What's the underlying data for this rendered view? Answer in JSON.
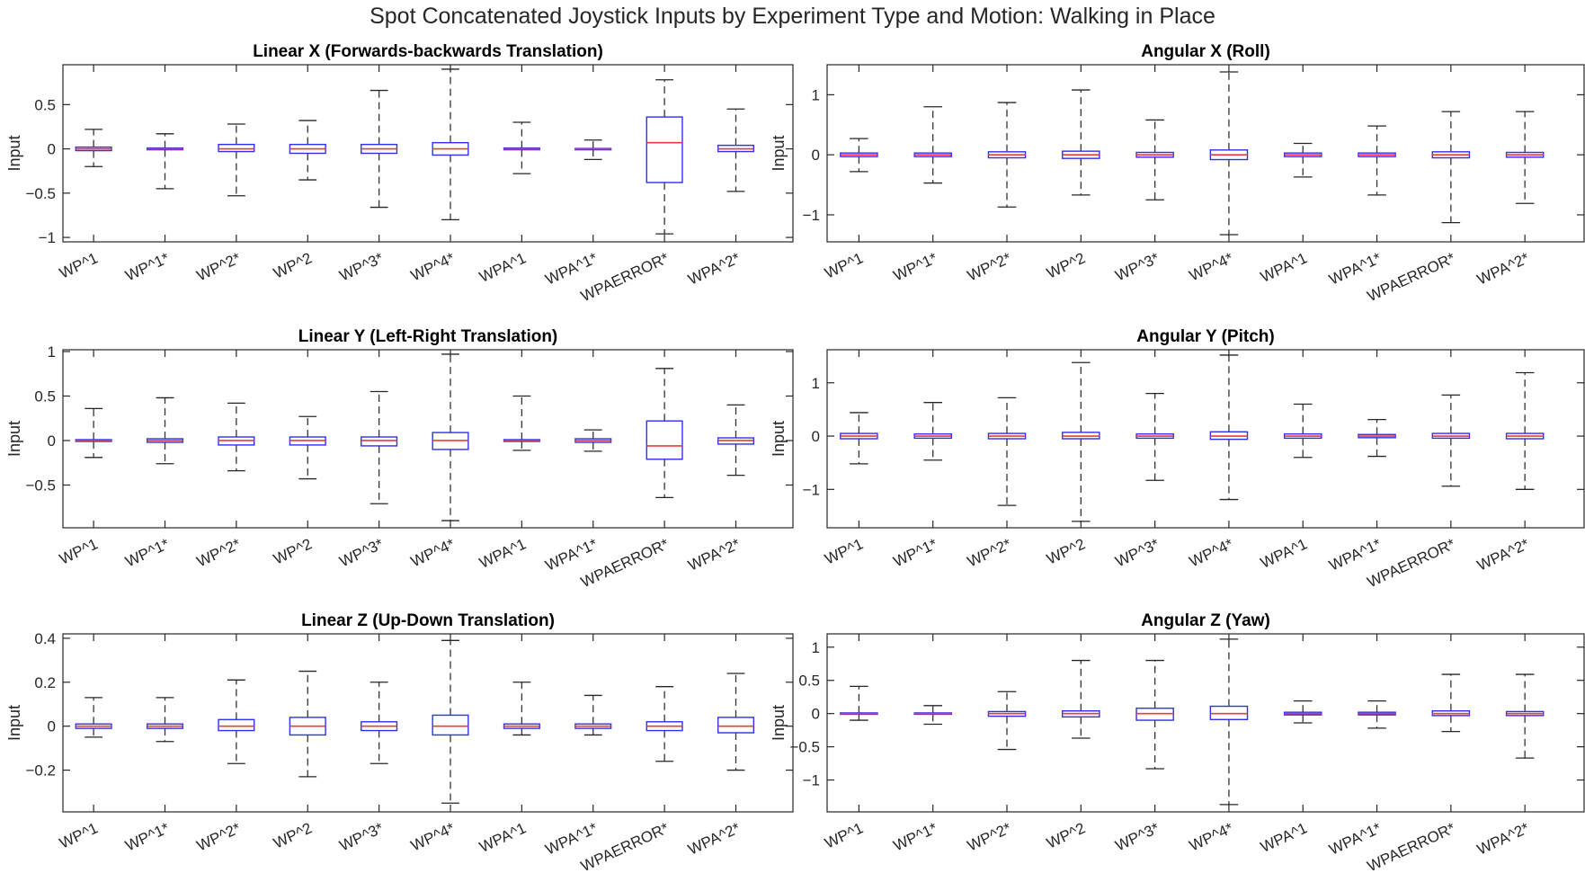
{
  "title": "Spot Concatenated Joystick Inputs by Experiment Type and Motion: Walking in Place",
  "colors": {
    "box": "#2f2ff0",
    "median": "#e83c3c",
    "whisker": "#333333",
    "axis": "#262626"
  },
  "chart_data": [
    {
      "type": "box",
      "title": "Linear X (Forwards-backwards Translation)",
      "ylabel": "Input",
      "ylim": [
        -1.05,
        0.95
      ],
      "yticks": [
        -1,
        -0.5,
        0,
        0.5
      ],
      "categories": [
        "WP^1",
        "WP^1*",
        "WP^2*",
        "WP^2",
        "WP^3*",
        "WP^4*",
        "WPA^1",
        "WPA^1*",
        "WPAERROR*",
        "WPA^2*"
      ],
      "boxes": [
        {
          "min": -0.2,
          "q1": -0.02,
          "median": 0.0,
          "q3": 0.02,
          "max": 0.22
        },
        {
          "min": -0.45,
          "q1": -0.01,
          "median": 0.0,
          "q3": 0.01,
          "max": 0.17
        },
        {
          "min": -0.53,
          "q1": -0.03,
          "median": 0.0,
          "q3": 0.05,
          "max": 0.28
        },
        {
          "min": -0.35,
          "q1": -0.05,
          "median": 0.0,
          "q3": 0.05,
          "max": 0.32
        },
        {
          "min": -0.66,
          "q1": -0.05,
          "median": 0.0,
          "q3": 0.05,
          "max": 0.66
        },
        {
          "min": -0.8,
          "q1": -0.07,
          "median": 0.0,
          "q3": 0.07,
          "max": 0.9
        },
        {
          "min": -0.28,
          "q1": -0.01,
          "median": 0.0,
          "q3": 0.01,
          "max": 0.3
        },
        {
          "min": -0.12,
          "q1": -0.005,
          "median": 0.0,
          "q3": 0.005,
          "max": 0.1
        },
        {
          "min": -0.96,
          "q1": -0.38,
          "median": 0.07,
          "q3": 0.36,
          "max": 0.78
        },
        {
          "min": -0.48,
          "q1": -0.03,
          "median": 0.0,
          "q3": 0.04,
          "max": 0.45
        }
      ]
    },
    {
      "type": "box",
      "title": "Angular X (Roll)",
      "ylabel": "Input",
      "ylim": [
        -1.45,
        1.5
      ],
      "yticks": [
        -1,
        0,
        1
      ],
      "categories": [
        "WP^1",
        "WP^1*",
        "WP^2*",
        "WP^2",
        "WP^3*",
        "WP^4*",
        "WPA^1",
        "WPA^1*",
        "WPAERROR*",
        "WPA^2*"
      ],
      "boxes": [
        {
          "min": -0.28,
          "q1": -0.03,
          "median": 0.0,
          "q3": 0.03,
          "max": 0.27
        },
        {
          "min": -0.47,
          "q1": -0.03,
          "median": 0.0,
          "q3": 0.03,
          "max": 0.8
        },
        {
          "min": -0.87,
          "q1": -0.05,
          "median": 0.0,
          "q3": 0.05,
          "max": 0.87
        },
        {
          "min": -0.67,
          "q1": -0.06,
          "median": 0.0,
          "q3": 0.06,
          "max": 1.08
        },
        {
          "min": -0.75,
          "q1": -0.04,
          "median": 0.0,
          "q3": 0.04,
          "max": 0.58
        },
        {
          "min": -1.33,
          "q1": -0.08,
          "median": 0.0,
          "q3": 0.08,
          "max": 1.38
        },
        {
          "min": -0.37,
          "q1": -0.03,
          "median": 0.0,
          "q3": 0.03,
          "max": 0.19
        },
        {
          "min": -0.67,
          "q1": -0.03,
          "median": 0.0,
          "q3": 0.03,
          "max": 0.48
        },
        {
          "min": -1.13,
          "q1": -0.05,
          "median": 0.0,
          "q3": 0.05,
          "max": 0.72
        },
        {
          "min": -0.81,
          "q1": -0.04,
          "median": 0.0,
          "q3": 0.04,
          "max": 0.72
        }
      ]
    },
    {
      "type": "box",
      "title": "Linear Y (Left-Right Translation)",
      "ylabel": "Input",
      "ylim": [
        -0.98,
        1.02
      ],
      "yticks": [
        -0.5,
        0,
        0.5,
        1
      ],
      "categories": [
        "WP^1",
        "WP^1*",
        "WP^2*",
        "WP^2",
        "WP^3*",
        "WP^4*",
        "WPA^1",
        "WPA^1*",
        "WPAERROR*",
        "WPA^2*"
      ],
      "boxes": [
        {
          "min": -0.19,
          "q1": -0.01,
          "median": 0.0,
          "q3": 0.01,
          "max": 0.36
        },
        {
          "min": -0.26,
          "q1": -0.02,
          "median": 0.0,
          "q3": 0.02,
          "max": 0.48
        },
        {
          "min": -0.34,
          "q1": -0.05,
          "median": 0.0,
          "q3": 0.04,
          "max": 0.42
        },
        {
          "min": -0.43,
          "q1": -0.05,
          "median": 0.0,
          "q3": 0.04,
          "max": 0.27
        },
        {
          "min": -0.71,
          "q1": -0.06,
          "median": 0.0,
          "q3": 0.04,
          "max": 0.55
        },
        {
          "min": -0.9,
          "q1": -0.1,
          "median": 0.0,
          "q3": 0.09,
          "max": 0.97
        },
        {
          "min": -0.11,
          "q1": -0.01,
          "median": 0.0,
          "q3": 0.01,
          "max": 0.5
        },
        {
          "min": -0.12,
          "q1": -0.02,
          "median": 0.0,
          "q3": 0.02,
          "max": 0.12
        },
        {
          "min": -0.64,
          "q1": -0.21,
          "median": -0.06,
          "q3": 0.22,
          "max": 0.81
        },
        {
          "min": -0.39,
          "q1": -0.04,
          "median": 0.0,
          "q3": 0.03,
          "max": 0.4
        }
      ]
    },
    {
      "type": "box",
      "title": "Angular Y (Pitch)",
      "ylabel": "Input",
      "ylim": [
        -1.72,
        1.62
      ],
      "yticks": [
        -1,
        0,
        1
      ],
      "categories": [
        "WP^1",
        "WP^1*",
        "WP^2*",
        "WP^2",
        "WP^3*",
        "WP^4*",
        "WPA^1",
        "WPA^1*",
        "WPAERROR*",
        "WPA^2*"
      ],
      "boxes": [
        {
          "min": -0.52,
          "q1": -0.05,
          "median": 0.0,
          "q3": 0.05,
          "max": 0.44
        },
        {
          "min": -0.45,
          "q1": -0.04,
          "median": 0.0,
          "q3": 0.04,
          "max": 0.63
        },
        {
          "min": -1.3,
          "q1": -0.05,
          "median": 0.0,
          "q3": 0.05,
          "max": 0.72
        },
        {
          "min": -1.6,
          "q1": -0.05,
          "median": 0.0,
          "q3": 0.07,
          "max": 1.38
        },
        {
          "min": -0.83,
          "q1": -0.04,
          "median": 0.0,
          "q3": 0.04,
          "max": 0.8
        },
        {
          "min": -1.19,
          "q1": -0.06,
          "median": 0.0,
          "q3": 0.08,
          "max": 1.52
        },
        {
          "min": -0.4,
          "q1": -0.04,
          "median": 0.0,
          "q3": 0.04,
          "max": 0.6
        },
        {
          "min": -0.38,
          "q1": -0.03,
          "median": 0.0,
          "q3": 0.03,
          "max": 0.31
        },
        {
          "min": -0.94,
          "q1": -0.04,
          "median": 0.0,
          "q3": 0.05,
          "max": 0.77
        },
        {
          "min": -1.0,
          "q1": -0.05,
          "median": 0.0,
          "q3": 0.05,
          "max": 1.19
        }
      ]
    },
    {
      "type": "box",
      "title": "Linear Z (Up-Down Translation)",
      "ylabel": "Input",
      "ylim": [
        -0.39,
        0.42
      ],
      "yticks": [
        -0.2,
        0,
        0.2,
        0.4
      ],
      "categories": [
        "WP^1",
        "WP^1*",
        "WP^2*",
        "WP^2",
        "WP^3*",
        "WP^4*",
        "WPA^1",
        "WPA^1*",
        "WPAERROR*",
        "WPA^2*"
      ],
      "boxes": [
        {
          "min": -0.05,
          "q1": -0.01,
          "median": 0.0,
          "q3": 0.01,
          "max": 0.13
        },
        {
          "min": -0.07,
          "q1": -0.01,
          "median": 0.0,
          "q3": 0.01,
          "max": 0.13
        },
        {
          "min": -0.17,
          "q1": -0.02,
          "median": 0.0,
          "q3": 0.03,
          "max": 0.21
        },
        {
          "min": -0.23,
          "q1": -0.04,
          "median": 0.0,
          "q3": 0.04,
          "max": 0.25
        },
        {
          "min": -0.17,
          "q1": -0.02,
          "median": 0.0,
          "q3": 0.02,
          "max": 0.2
        },
        {
          "min": -0.35,
          "q1": -0.04,
          "median": 0.0,
          "q3": 0.05,
          "max": 0.39
        },
        {
          "min": -0.04,
          "q1": -0.01,
          "median": 0.0,
          "q3": 0.01,
          "max": 0.2
        },
        {
          "min": -0.04,
          "q1": -0.01,
          "median": 0.0,
          "q3": 0.01,
          "max": 0.14
        },
        {
          "min": -0.16,
          "q1": -0.02,
          "median": 0.0,
          "q3": 0.02,
          "max": 0.18
        },
        {
          "min": -0.2,
          "q1": -0.03,
          "median": 0.0,
          "q3": 0.04,
          "max": 0.24
        }
      ]
    },
    {
      "type": "box",
      "title": "Angular Z (Yaw)",
      "ylabel": "Input",
      "ylim": [
        -1.48,
        1.2
      ],
      "yticks": [
        -1,
        -0.5,
        0,
        0.5,
        1
      ],
      "categories": [
        "WP^1",
        "WP^1*",
        "WP^2*",
        "WP^2",
        "WP^3*",
        "WP^4*",
        "WPA^1",
        "WPA^1*",
        "WPAERROR*",
        "WPA^2*"
      ],
      "boxes": [
        {
          "min": -0.1,
          "q1": -0.01,
          "median": 0.0,
          "q3": 0.01,
          "max": 0.41
        },
        {
          "min": -0.16,
          "q1": -0.01,
          "median": 0.0,
          "q3": 0.01,
          "max": 0.12
        },
        {
          "min": -0.54,
          "q1": -0.04,
          "median": 0.0,
          "q3": 0.03,
          "max": 0.33
        },
        {
          "min": -0.37,
          "q1": -0.05,
          "median": 0.0,
          "q3": 0.04,
          "max": 0.8
        },
        {
          "min": -0.83,
          "q1": -0.1,
          "median": 0.0,
          "q3": 0.08,
          "max": 0.8
        },
        {
          "min": -1.37,
          "q1": -0.09,
          "median": 0.0,
          "q3": 0.11,
          "max": 1.12
        },
        {
          "min": -0.14,
          "q1": -0.02,
          "median": 0.0,
          "q3": 0.02,
          "max": 0.19
        },
        {
          "min": -0.22,
          "q1": -0.02,
          "median": 0.0,
          "q3": 0.02,
          "max": 0.19
        },
        {
          "min": -0.27,
          "q1": -0.03,
          "median": 0.0,
          "q3": 0.04,
          "max": 0.59
        },
        {
          "min": -0.67,
          "q1": -0.03,
          "median": 0.0,
          "q3": 0.03,
          "max": 0.59
        }
      ]
    }
  ]
}
